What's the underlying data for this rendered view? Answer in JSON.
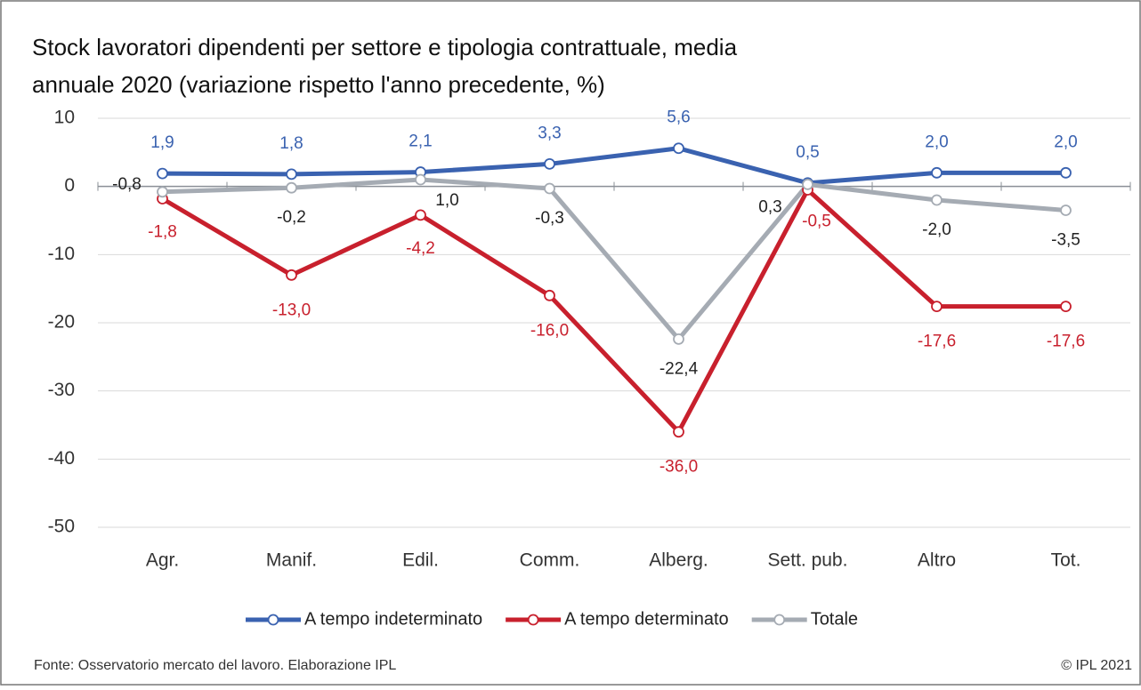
{
  "chart_data": {
    "type": "line",
    "title": [
      "Stock lavoratori dipendenti per settore e tipologia contrattuale, media",
      "annuale 2020 (variazione  rispetto l'anno precedente, %)"
    ],
    "categories": [
      "Agr.",
      "Manif.",
      "Edil.",
      "Comm.",
      "Alberg.",
      "Sett. pub.",
      "Altro",
      "Tot."
    ],
    "series": [
      {
        "name": "A tempo indeterminato",
        "color": "#3a62b0",
        "values": [
          1.9,
          1.8,
          2.1,
          3.3,
          5.6,
          0.5,
          2.0,
          2.0
        ],
        "value_labels": [
          "1,9",
          "1,8",
          "2,1",
          "3,3",
          "5,6",
          "0,5",
          "2,0",
          "2,0"
        ]
      },
      {
        "name": "A tempo determinato",
        "color": "#c8202d",
        "values": [
          -1.8,
          -13.0,
          -4.2,
          -16.0,
          -36.0,
          -0.5,
          -17.6,
          -17.6
        ],
        "value_labels": [
          "-1,8",
          "-13,0",
          "-4,2",
          "-16,0",
          "-36,0",
          "-0,5",
          "-17,6",
          "-17,6"
        ]
      },
      {
        "name": "Totale",
        "color": "#a5abb3",
        "values": [
          -0.8,
          -0.2,
          1.0,
          -0.3,
          -22.4,
          0.3,
          -2.0,
          -3.5
        ],
        "value_labels": [
          "-0,8",
          "-0,2",
          "1,0",
          "-0,3",
          "-22,4",
          "0,3",
          "-2,0",
          "-3,5"
        ]
      }
    ],
    "ylim": [
      -50,
      10
    ],
    "yticks": [
      -50,
      -40,
      -30,
      -20,
      -10,
      0,
      10
    ],
    "grid": true,
    "legend": "bottom",
    "source": "Fonte: Osservatorio  mercato del lavoro. Elaborazione IPL",
    "copyright": "© IPL 2021"
  }
}
